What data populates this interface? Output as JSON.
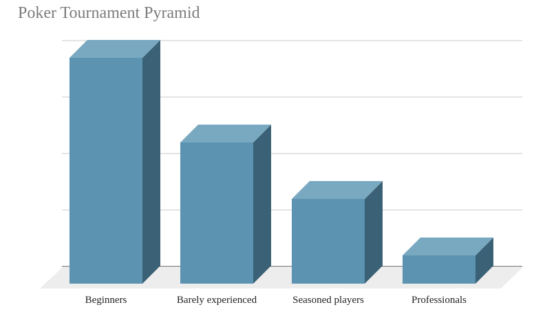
{
  "chart_data": {
    "type": "bar",
    "title": "Poker Tournament Pyramid",
    "categories": [
      "Beginners",
      "Barely experienced",
      "Seasoned players",
      "Professionals"
    ],
    "values": [
      4,
      2.5,
      1.5,
      0.5
    ],
    "ylim": [
      0,
      4
    ],
    "ytick_labels_shown": false,
    "grid": true,
    "legend": "none",
    "style": "3d-column",
    "colors": {
      "front": "#5b93b0",
      "top": "#79a8c1",
      "side": "#3a6175",
      "floor": "#ededed",
      "grid": "#c8c8c8",
      "axis": "#555555"
    }
  }
}
